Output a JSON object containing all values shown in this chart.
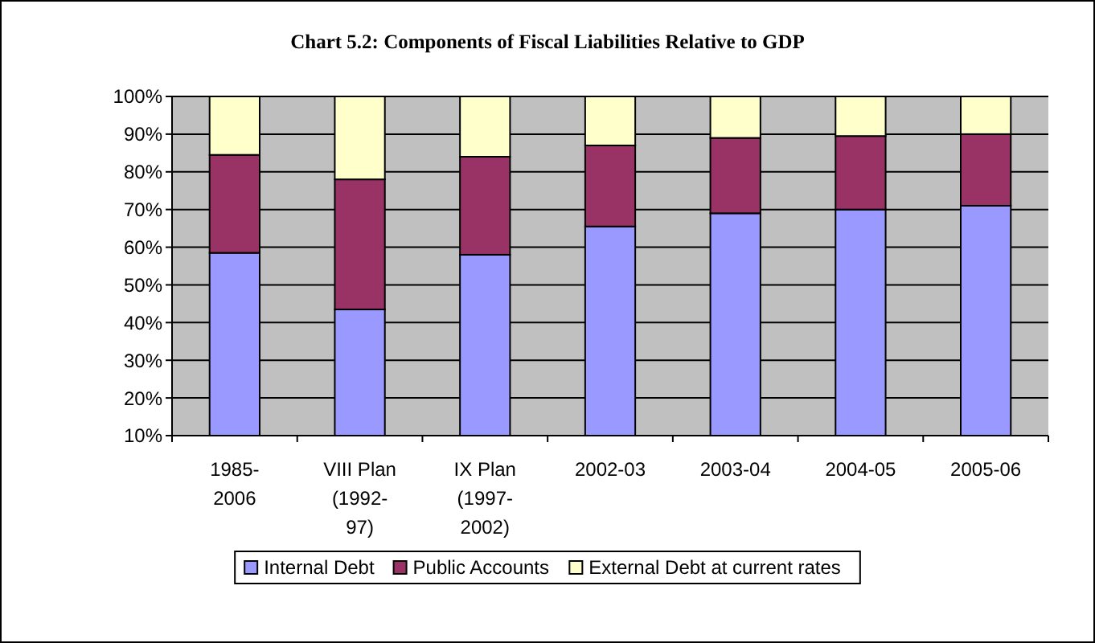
{
  "chart_data": {
    "type": "bar",
    "stacked": true,
    "title": "Chart 5.2: Components of Fiscal Liabilities Relative to GDP",
    "categories": [
      "1985-2006",
      "VIII Plan (1992-97)",
      "IX Plan (1997-2002)",
      "2002-03",
      "2003-04",
      "2004-05",
      "2005-06"
    ],
    "series": [
      {
        "name": "Internal Debt",
        "color": "#9999ff",
        "values": [
          58.5,
          43.5,
          58,
          65.5,
          69,
          70,
          71
        ]
      },
      {
        "name": "Public Accounts",
        "color": "#993366",
        "values": [
          26,
          34.5,
          26,
          21.5,
          20,
          19.5,
          19
        ]
      },
      {
        "name": "External Debt at current rates",
        "color": "#ffffcc",
        "values": [
          15.5,
          22,
          16,
          13,
          11,
          10.5,
          10
        ]
      }
    ],
    "ylim": [
      10,
      100
    ],
    "yticks": [
      {
        "value": 10,
        "label": "10%"
      },
      {
        "value": 20,
        "label": "20%"
      },
      {
        "value": 30,
        "label": "30%"
      },
      {
        "value": 40,
        "label": "40%"
      },
      {
        "value": 50,
        "label": "50%"
      },
      {
        "value": 60,
        "label": "60%"
      },
      {
        "value": 70,
        "label": "70%"
      },
      {
        "value": 80,
        "label": "80%"
      },
      {
        "value": 90,
        "label": "90%"
      },
      {
        "value": 100,
        "label": "100%"
      }
    ],
    "grid": "y",
    "legend": "bottom"
  }
}
